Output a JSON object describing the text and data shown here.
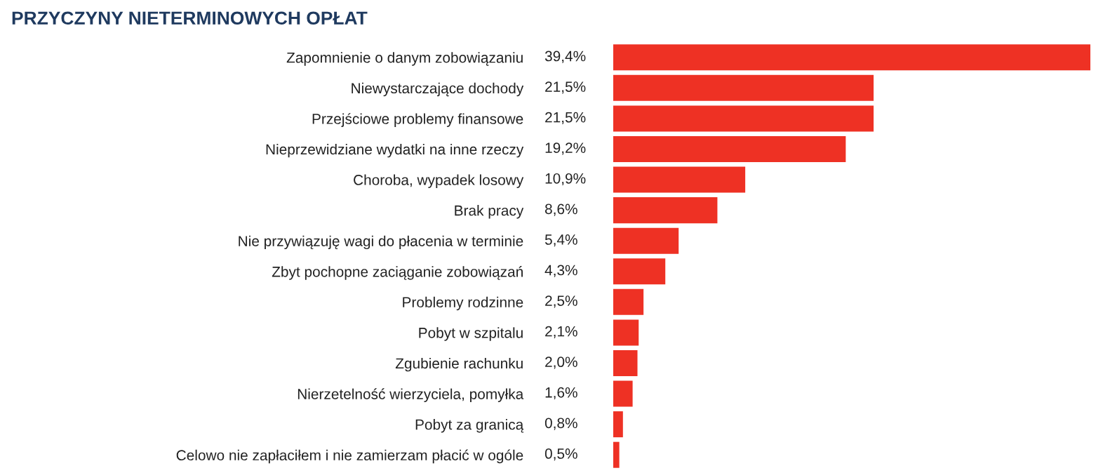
{
  "chart_data": {
    "type": "bar",
    "orientation": "horizontal",
    "title": "PRZYCZYNY NIETERMINOWYCH OPŁAT",
    "categories": [
      "Zapomnienie o danym zobowiązaniu",
      "Niewystarczające dochody",
      "Przejściowe problemy finansowe",
      "Nieprzewidziane wydatki na inne rzeczy",
      "Choroba, wypadek losowy",
      "Brak pracy",
      "Nie przywiązuję wagi do płacenia w terminie",
      "Zbyt pochopne zaciąganie zobowiązań",
      "Problemy rodzinne",
      "Pobyt w szpitalu",
      "Zgubienie rachunku",
      "Nierzetelność wierzyciela, pomyłka",
      "Pobyt za granicą",
      "Celowo nie zapłaciłem i nie zamierzam płacić w ogóle"
    ],
    "values": [
      39.4,
      21.5,
      21.5,
      19.2,
      10.9,
      8.6,
      5.4,
      4.3,
      2.5,
      2.1,
      2.0,
      1.6,
      0.8,
      0.5
    ],
    "value_labels": [
      "39,4%",
      "21,5%",
      "21,5%",
      "19,2%",
      "10,9%",
      "8,6%",
      "5,4%",
      "4,3%",
      "2,5%",
      "2,1%",
      "2,0%",
      "1,6%",
      "0,8%",
      "0,5%"
    ],
    "color": "#ee3124",
    "grid": false,
    "legend": false
  }
}
